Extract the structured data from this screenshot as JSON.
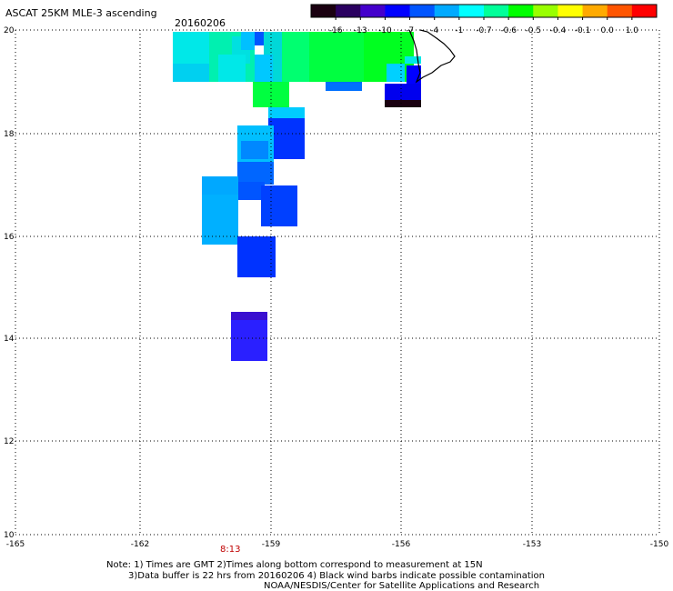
{
  "header": {
    "title": "ASCAT 25KM MLE-3 ascending",
    "date": "20160206"
  },
  "colorbar": {
    "labels": [
      "-16",
      "-13",
      "-10",
      "-7",
      "-4",
      "-1",
      "-0.7",
      "-0.6",
      "-0.5",
      "-0.4",
      "-0.1",
      "0.0",
      "1.0"
    ],
    "colors": [
      "#1a0010",
      "#2a0060",
      "#4400cc",
      "#0000ff",
      "#0055ff",
      "#00aaff",
      "#00ffff",
      "#00ff99",
      "#00ff00",
      "#99ff00",
      "#ffff00",
      "#ffaa00",
      "#ff5500",
      "#ff0000"
    ]
  },
  "axes": {
    "x_ticks": [
      "-165",
      "-162",
      "-159",
      "-156",
      "-153",
      "-150"
    ],
    "y_ticks": [
      "20",
      "18",
      "16",
      "14",
      "12",
      "10"
    ]
  },
  "annotations": {
    "time_label": "8:13",
    "note_line1": "Note: 1) Times are GMT 2)Times along bottom correspond to measurement at 15N",
    "note_line2": "3)Data buffer is 22 hrs from 20160206 4) Black wind barbs indicate possible contamination",
    "note_line3": "NOAA/NESDIS/Center for Satellite Applications and Research"
  }
}
